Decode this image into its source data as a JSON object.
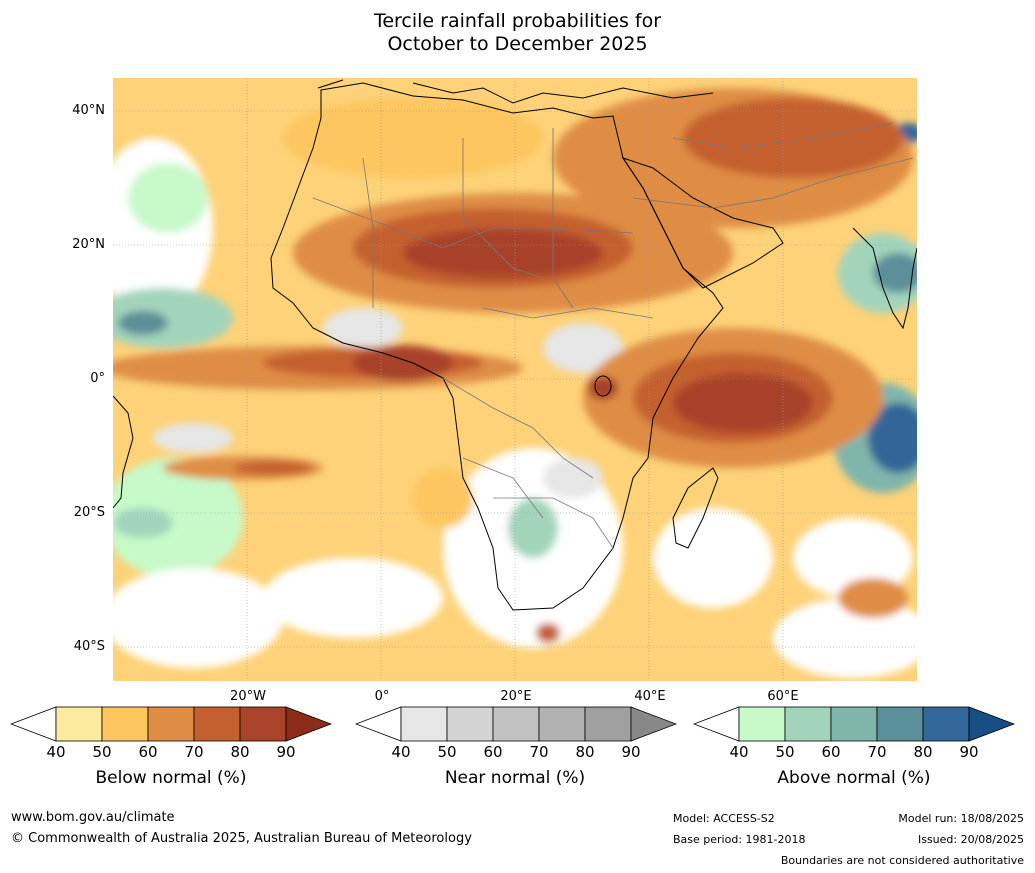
{
  "title": {
    "line1": "Tercile rainfall probabilities for",
    "line2": "October to December 2025"
  },
  "map": {
    "lat_labels": [
      "40°N",
      "20°N",
      "0°",
      "20°S",
      "40°S"
    ],
    "lon_labels": [
      "20°W",
      "0°",
      "20°E",
      "40°E",
      "60°E"
    ]
  },
  "legends": [
    {
      "title": "Below normal (%)",
      "ticks": [
        "40",
        "50",
        "60",
        "70",
        "80",
        "90"
      ],
      "colors": [
        "#ffffff",
        "#feeba2",
        "#fdc65f",
        "#df8d44",
        "#c4602f",
        "#a9432a",
        "#8c2d1c"
      ]
    },
    {
      "title": "Near normal (%)",
      "ticks": [
        "40",
        "50",
        "60",
        "70",
        "80",
        "90"
      ],
      "colors": [
        "#ffffff",
        "#e6e6e6",
        "#d3d3d3",
        "#c2c2c2",
        "#b2b2b2",
        "#a0a0a0",
        "#888888"
      ]
    },
    {
      "title": "Above normal (%)",
      "ticks": [
        "40",
        "50",
        "60",
        "70",
        "80",
        "90"
      ],
      "colors": [
        "#ffffff",
        "#c7f9c9",
        "#a2d4bc",
        "#7fb5ab",
        "#5b8f99",
        "#336699",
        "#184e84"
      ]
    }
  ],
  "footer": {
    "website": "www.bom.gov.au/climate",
    "copyright": "© Commonwealth of Australia 2025, Australian Bureau of Meteorology",
    "model": "Model: ACCESS-S2",
    "base_period": "Base period: 1981-2018",
    "model_run": "Model run: 18/08/2025",
    "issued": "Issued: 20/08/2025",
    "disclaimer": "Boundaries are not considered authoritative"
  }
}
